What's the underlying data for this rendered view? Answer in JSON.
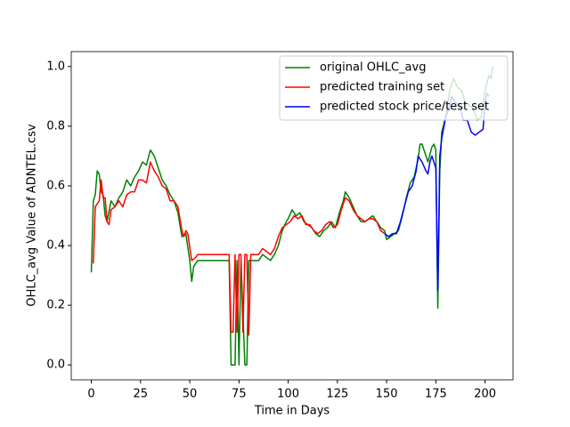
{
  "chart_data": {
    "type": "line",
    "xlabel": "Time in Days",
    "ylabel": "OHLC_avg Value of ADNTEL.csv",
    "xlim": [
      -10.2,
      214.2
    ],
    "ylim": [
      -0.05,
      1.05
    ],
    "xticks": [
      0,
      25,
      50,
      75,
      100,
      125,
      150,
      175,
      200
    ],
    "yticks": [
      {
        "value": 0,
        "label": "0.0"
      },
      0.2,
      0.4,
      0.6,
      0.8,
      {
        "value": 1,
        "label": "1.0"
      }
    ],
    "legend": "upper right",
    "series": [
      {
        "name": "original OHLC_avg",
        "color": "#008000",
        "x": [
          0,
          1,
          2,
          3,
          4,
          5,
          6,
          7,
          8,
          10,
          12,
          14,
          16,
          18,
          20,
          22,
          24,
          26,
          28,
          30,
          32,
          34,
          36,
          38,
          40,
          42,
          44,
          46,
          48,
          50,
          51,
          52,
          54,
          60,
          65,
          70,
          71,
          73,
          74,
          75,
          76,
          78,
          79,
          80,
          82,
          85,
          87,
          89,
          91,
          93,
          95,
          97,
          99,
          100,
          102,
          104,
          106,
          108,
          110,
          112,
          114,
          116,
          118,
          120,
          122,
          124,
          126,
          128,
          129,
          131,
          133,
          135,
          137,
          139,
          141,
          143,
          145,
          147,
          149,
          150,
          152,
          154,
          156,
          158,
          160,
          162,
          164,
          166,
          167,
          168,
          170,
          171,
          173,
          174,
          175,
          176,
          177,
          178,
          180,
          182,
          184,
          186,
          188,
          190,
          192,
          194,
          196,
          198,
          200,
          202,
          203,
          204
        ],
        "values": [
          0.31,
          0.55,
          0.57,
          0.65,
          0.64,
          0.58,
          0.57,
          0.5,
          0.48,
          0.55,
          0.53,
          0.56,
          0.58,
          0.62,
          0.6,
          0.63,
          0.65,
          0.68,
          0.67,
          0.72,
          0.7,
          0.66,
          0.62,
          0.6,
          0.57,
          0.55,
          0.51,
          0.43,
          0.44,
          0.35,
          0.28,
          0.33,
          0.35,
          0.35,
          0.35,
          0.35,
          0.0,
          0.0,
          0.35,
          0.0,
          0.35,
          0.0,
          0.0,
          0.35,
          0.35,
          0.35,
          0.37,
          0.36,
          0.35,
          0.37,
          0.4,
          0.45,
          0.48,
          0.49,
          0.52,
          0.5,
          0.51,
          0.48,
          0.47,
          0.46,
          0.44,
          0.43,
          0.45,
          0.46,
          0.48,
          0.46,
          0.51,
          0.55,
          0.58,
          0.56,
          0.53,
          0.5,
          0.48,
          0.48,
          0.49,
          0.5,
          0.48,
          0.46,
          0.45,
          0.42,
          0.43,
          0.44,
          0.45,
          0.5,
          0.56,
          0.61,
          0.63,
          0.69,
          0.74,
          0.74,
          0.7,
          0.68,
          0.73,
          0.74,
          0.72,
          0.19,
          0.65,
          0.78,
          0.83,
          0.92,
          0.96,
          0.93,
          0.92,
          0.88,
          0.87,
          0.86,
          0.82,
          0.83,
          0.92,
          0.97,
          0.96,
          1.0
        ]
      },
      {
        "name": "predicted training set",
        "color": "#ff0000",
        "x": [
          1,
          2,
          4,
          5,
          6,
          7,
          8,
          9,
          10,
          12,
          14,
          16,
          18,
          20,
          22,
          24,
          26,
          28,
          30,
          32,
          34,
          36,
          38,
          40,
          42,
          44,
          46,
          47,
          48,
          49,
          51,
          53,
          54,
          60,
          70,
          71,
          72,
          73,
          74,
          75,
          76,
          77,
          78,
          79,
          80,
          81,
          83,
          85,
          87,
          89,
          91,
          93,
          95,
          97,
          99,
          101,
          103,
          105,
          107,
          109,
          111,
          113,
          115,
          117,
          119,
          121,
          123,
          125,
          127,
          129,
          131,
          133,
          135,
          137,
          139,
          141,
          143,
          145,
          147,
          149
        ],
        "values": [
          0.34,
          0.53,
          0.55,
          0.62,
          0.56,
          0.56,
          0.48,
          0.47,
          0.52,
          0.53,
          0.55,
          0.53,
          0.57,
          0.58,
          0.58,
          0.62,
          0.62,
          0.61,
          0.68,
          0.65,
          0.63,
          0.6,
          0.59,
          0.55,
          0.55,
          0.53,
          0.45,
          0.43,
          0.45,
          0.44,
          0.35,
          0.36,
          0.37,
          0.37,
          0.37,
          0.11,
          0.11,
          0.37,
          0.11,
          0.37,
          0.37,
          0.11,
          0.37,
          0.37,
          0.1,
          0.37,
          0.37,
          0.37,
          0.39,
          0.38,
          0.37,
          0.39,
          0.43,
          0.46,
          0.47,
          0.48,
          0.5,
          0.49,
          0.5,
          0.47,
          0.47,
          0.45,
          0.44,
          0.45,
          0.47,
          0.48,
          0.46,
          0.47,
          0.52,
          0.56,
          0.55,
          0.52,
          0.5,
          0.49,
          0.48,
          0.49,
          0.49,
          0.48,
          0.45,
          0.44
        ]
      },
      {
        "name": "predicted stock price/test set",
        "color": "#0000ff",
        "x": [
          149,
          151,
          153,
          155,
          157,
          159,
          161,
          163,
          165,
          166,
          168,
          170,
          171,
          172,
          173,
          174,
          175,
          176,
          177,
          178,
          180,
          182,
          183,
          185,
          187,
          189,
          191,
          193,
          195,
          197,
          199,
          200,
          201,
          202
        ],
        "values": [
          0.44,
          0.43,
          0.44,
          0.44,
          0.48,
          0.53,
          0.58,
          0.6,
          0.65,
          0.7,
          0.68,
          0.65,
          0.64,
          0.68,
          0.7,
          0.68,
          0.66,
          0.25,
          0.7,
          0.76,
          0.83,
          0.87,
          0.9,
          0.88,
          0.87,
          0.82,
          0.82,
          0.78,
          0.77,
          0.78,
          0.79,
          0.88,
          0.91,
          0.9
        ]
      }
    ]
  }
}
